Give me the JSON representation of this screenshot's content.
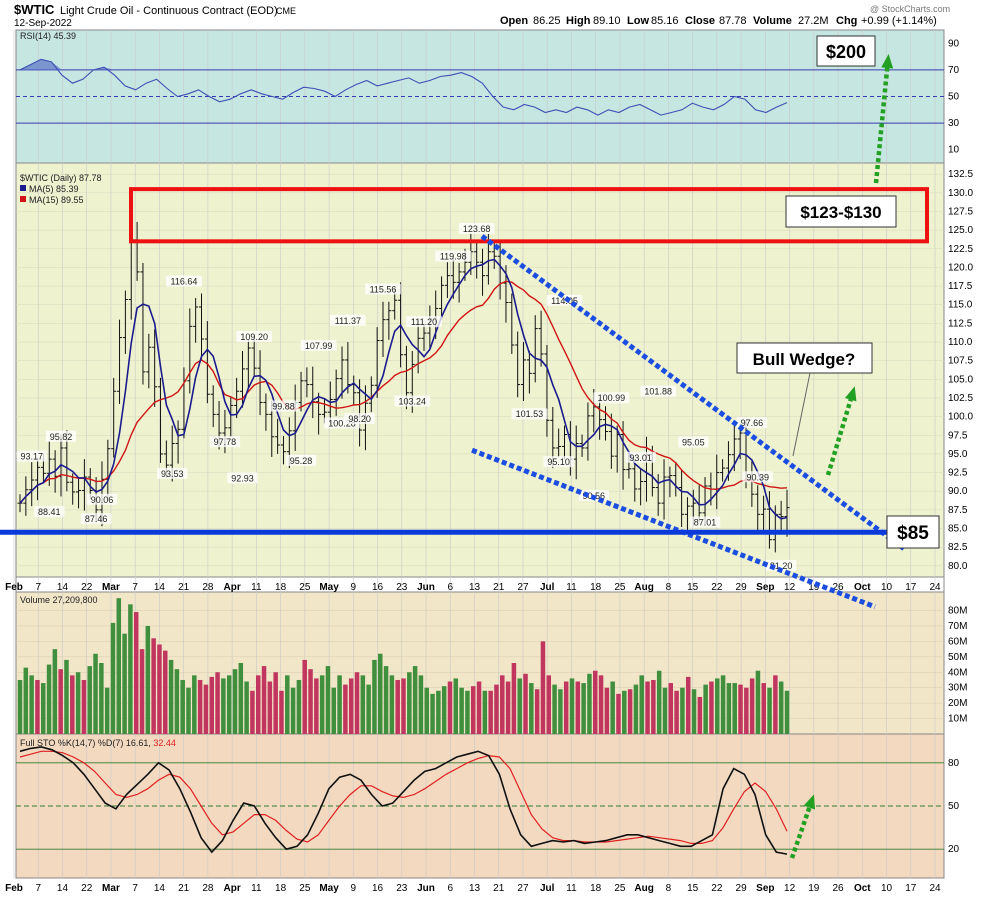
{
  "header": {
    "symbol": "$WTIC",
    "name": "Light Crude Oil - Continuous Contract (EOD)",
    "exchange": "CME",
    "date": "12-Sep-2022",
    "open_label": "Open",
    "open": "86.25",
    "high_label": "High",
    "high": "89.10",
    "low_label": "Low",
    "low": "85.16",
    "close_label": "Close",
    "close": "87.78",
    "volume_label": "Volume",
    "volume": "27.2M",
    "chg_label": "Chg",
    "chg": "+0.99 (+1.14%)",
    "watermark": "@ StockCharts.com"
  },
  "colors": {
    "rsi_bg": "#c6e6e2",
    "price_bg": "#eef2cf",
    "volume_bg": "#f2e6c8",
    "sto_bg": "#f3d9c0",
    "ma5": "#1b1b8f",
    "ma15": "#d11515",
    "blue_line": "#0a3ad9",
    "wedge": "#1a4de0",
    "box": "#ee1111",
    "arrow": "#22a022",
    "vol_up": "#3f8f3f",
    "vol_down": "#c0365f"
  },
  "chart_data": [
    {
      "type": "line",
      "panel": "rsi",
      "legend": "RSI(14) 45.39",
      "ylim": [
        0,
        100
      ],
      "y_ticks": [
        10,
        30,
        50,
        70,
        90
      ],
      "reference_lines": [
        30,
        50,
        70
      ],
      "values": [
        70,
        74,
        78,
        76,
        66,
        60,
        63,
        70,
        72,
        66,
        58,
        55,
        60,
        63,
        56,
        50,
        52,
        55,
        50,
        46,
        48,
        52,
        55,
        52,
        50,
        48,
        53,
        57,
        56,
        54,
        50,
        55,
        59,
        62,
        58,
        60,
        62,
        64,
        60,
        62,
        65,
        66,
        68,
        65,
        60,
        50,
        42,
        40,
        44,
        42,
        38,
        40,
        38,
        42,
        40,
        36,
        40,
        38,
        42,
        44,
        40,
        36,
        38,
        40,
        45,
        42,
        40,
        44,
        50,
        48,
        40,
        38,
        42,
        45.39
      ]
    },
    {
      "type": "candlestick",
      "panel": "price",
      "legend": [
        "$WTIC (Daily) 87.78",
        "MA(5) 85.39",
        "MA(15) 89.55"
      ],
      "ylim": [
        78.5,
        134
      ],
      "y_ticks": [
        "80.0",
        "82.5",
        "85.0",
        "87.5",
        "90.0",
        "92.5",
        "95.0",
        "97.5",
        "100.0",
        "102.5",
        "105.0",
        "107.5",
        "110.0",
        "112.5",
        "115.0",
        "117.5",
        "120.0",
        "122.5",
        "125.0",
        "127.5",
        "130.0",
        "132.5"
      ],
      "closes": [
        88.4,
        90.2,
        91.5,
        93.2,
        92.4,
        94.3,
        92.0,
        95.8,
        91.2,
        89.9,
        90.1,
        91.9,
        90.1,
        87.5,
        91.6,
        95.7,
        103.4,
        110.6,
        115.7,
        123.7,
        119.4,
        106.0,
        109.3,
        104.0,
        95.0,
        93.5,
        96.4,
        98.3,
        104.8,
        112.1,
        114.7,
        110.4,
        103.0,
        100.3,
        97.8,
        98.5,
        101.5,
        103.4,
        106.4,
        109.2,
        106.5,
        101.9,
        100.3,
        97.3,
        96.2,
        95.3,
        98.1,
        101.9,
        104.8,
        104.3,
        102.0,
        100.3,
        100.6,
        102.3,
        105.1,
        107.6,
        104.3,
        103.2,
        98.2,
        101.8,
        104.2,
        110.2,
        113.0,
        114.2,
        115.6,
        108.3,
        103.2,
        107.0,
        110.5,
        111.2,
        113.1,
        114.5,
        117.6,
        118.9,
        118.0,
        119.4,
        120.7,
        122.1,
        120.7,
        118.9,
        122.1,
        121.5,
        117.9,
        115.3,
        109.6,
        104.3,
        107.6,
        105.8,
        111.8,
        108.4,
        99.5,
        95.8,
        96.0,
        97.6,
        94.3,
        96.4,
        95.8,
        100.1,
        101.3,
        99.6,
        98.0,
        94.7,
        97.6,
        92.9,
        93.0,
        90.3,
        91.3,
        94.9,
        90.5,
        88.4,
        91.9,
        92.1,
        90.5,
        86.9,
        88.0,
        88.4,
        87.1,
        90.7,
        90.3,
        92.5,
        93.1,
        94.9,
        97.0,
        97.8,
        91.6,
        89.6,
        86.9,
        87.6,
        83.5,
        86.9,
        86.6,
        87.8
      ],
      "data_labels": [
        "93.17",
        "95.82",
        "88.41",
        "87.46",
        "90.06",
        "93.53",
        "116.64",
        "97.78",
        "92.93",
        "109.20",
        "99.88",
        "95.28",
        "107.99",
        "100.28",
        "111.37",
        "98.20",
        "115.56",
        "103.24",
        "119.98",
        "111.20",
        "123.68",
        "101.53",
        "114.05",
        "95.10",
        "90.56",
        "100.99",
        "93.01",
        "101.88",
        "95.05",
        "87.01",
        "97.66",
        "90.39",
        "81.20"
      ],
      "x_ticks": [
        "Feb",
        "7",
        "14",
        "22",
        "Mar",
        "7",
        "14",
        "21",
        "28",
        "Apr",
        "11",
        "18",
        "25",
        "May",
        "9",
        "16",
        "23",
        "Jun",
        "6",
        "13",
        "21",
        "27",
        "Jul",
        "11",
        "18",
        "25",
        "Aug",
        "8",
        "15",
        "22",
        "29",
        "Sep",
        "12",
        "19",
        "26",
        "Oct",
        "10",
        "17",
        "24"
      ],
      "annotations": [
        "$123-$130",
        "$200",
        "Bull Wedge?",
        "$85"
      ]
    },
    {
      "type": "bar",
      "panel": "volume",
      "legend": "Volume 27,209,800",
      "y_ticks": [
        "10M",
        "20M",
        "30M",
        "40M",
        "50M",
        "60M",
        "70M",
        "80M"
      ],
      "values_millions": [
        35,
        43,
        38,
        35,
        33,
        45,
        55,
        42,
        48,
        38,
        40,
        35,
        44,
        52,
        46,
        30,
        72,
        88,
        65,
        84,
        79,
        55,
        70,
        62,
        58,
        54,
        48,
        42,
        35,
        30,
        38,
        35,
        32,
        37,
        40,
        36,
        38,
        42,
        46,
        34,
        28,
        38,
        44,
        34,
        40,
        28,
        38,
        30,
        35,
        48,
        42,
        36,
        38,
        44,
        30,
        38,
        32,
        36,
        40,
        38,
        32,
        48,
        52,
        44,
        38,
        35,
        36,
        40,
        44,
        38,
        30,
        26,
        28,
        31,
        34,
        36,
        30,
        28,
        31,
        34,
        28,
        28,
        32,
        38,
        34,
        46,
        36,
        39,
        33,
        29,
        60,
        38,
        32,
        29,
        34,
        36,
        34,
        33,
        39,
        41,
        38,
        30,
        34,
        26,
        28,
        29,
        32,
        38,
        34,
        35,
        41,
        30,
        33,
        28,
        30,
        37,
        29,
        24,
        32,
        34,
        36,
        38,
        33,
        33,
        32,
        30,
        36,
        41,
        33,
        30,
        38,
        34,
        28
      ],
      "up_flags": [
        1,
        1,
        1,
        0,
        1,
        1,
        1,
        0,
        1,
        0,
        1,
        0,
        1,
        1,
        1,
        1,
        1,
        1,
        1,
        1,
        0,
        0,
        1,
        0,
        0,
        0,
        1,
        1,
        1,
        1,
        1,
        0,
        0,
        0,
        0,
        1,
        1,
        1,
        1,
        1,
        0,
        0,
        0,
        0,
        0,
        0,
        1,
        1,
        1,
        0,
        0,
        0,
        1,
        1,
        1,
        1,
        0,
        0,
        0,
        1,
        1,
        1,
        1,
        1,
        1,
        0,
        0,
        1,
        1,
        1,
        1,
        1,
        1,
        1,
        0,
        1,
        1,
        1,
        0,
        0,
        1,
        0,
        0,
        0,
        0,
        0,
        1,
        0,
        1,
        0,
        0,
        0,
        1,
        1,
        0,
        1,
        0,
        1,
        1,
        0,
        0,
        0,
        1,
        0,
        1,
        0,
        1,
        1,
        0,
        0,
        1,
        1,
        0,
        0,
        1,
        0,
        1,
        0,
        1,
        0,
        1,
        1,
        1,
        1,
        0,
        0,
        0,
        1,
        0,
        1,
        0,
        1,
        1
      ]
    },
    {
      "type": "line",
      "panel": "stochastic",
      "legend_prefix": "Full STO %K(14,7) %D(7)",
      "k_value": "16.61",
      "d_value": "32.44",
      "ylim": [
        0,
        100
      ],
      "y_ticks": [
        20,
        50,
        80
      ],
      "reference_lines": [
        20,
        50,
        80
      ],
      "k_values": [
        88,
        90,
        91,
        89,
        85,
        80,
        72,
        62,
        52,
        48,
        58,
        65,
        72,
        80,
        75,
        62,
        46,
        28,
        18,
        26,
        40,
        52,
        50,
        38,
        28,
        20,
        22,
        30,
        45,
        62,
        70,
        72,
        68,
        58,
        50,
        52,
        60,
        68,
        74,
        76,
        80,
        84,
        86,
        88,
        85,
        72,
        48,
        30,
        22,
        24,
        26,
        25,
        26,
        24,
        25,
        26,
        28,
        30,
        30,
        28,
        26,
        24,
        22,
        22,
        26,
        30,
        62,
        76,
        72,
        58,
        30,
        18,
        16.61
      ],
      "d_values": [
        84,
        86,
        88,
        88,
        87,
        84,
        80,
        74,
        66,
        58,
        56,
        58,
        62,
        68,
        72,
        70,
        62,
        50,
        38,
        30,
        32,
        38,
        44,
        44,
        40,
        33,
        27,
        25,
        30,
        40,
        50,
        58,
        64,
        64,
        60,
        57,
        56,
        58,
        62,
        67,
        72,
        76,
        80,
        83,
        85,
        84,
        76,
        60,
        44,
        34,
        28,
        26,
        26,
        25,
        25,
        25,
        26,
        27,
        28,
        29,
        28,
        27,
        26,
        24,
        24,
        26,
        35,
        48,
        60,
        66,
        60,
        48,
        32.44
      ]
    }
  ]
}
